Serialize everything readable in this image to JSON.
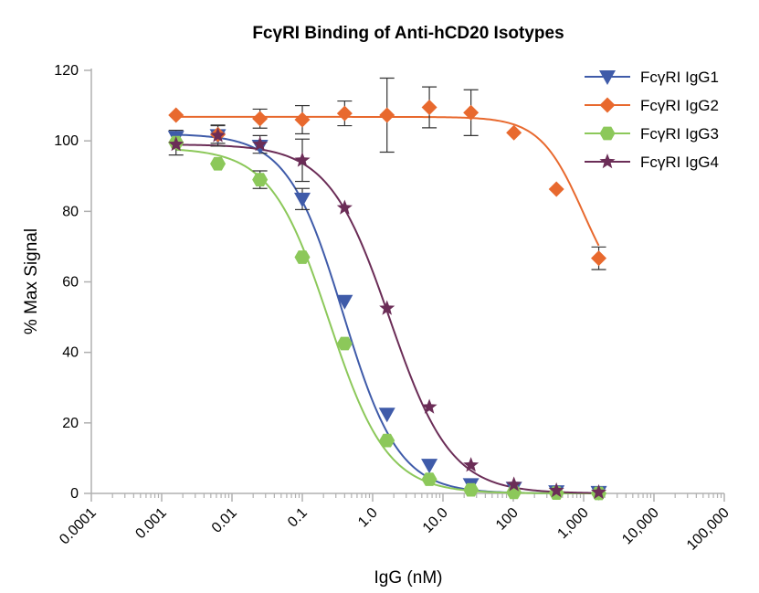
{
  "chart_data": {
    "type": "scatter",
    "title": "FcγRI Binding of Anti-hCD20 Isotypes",
    "xlabel": "IgG (nM)",
    "ylabel": "% Max Signal",
    "xscale": "log",
    "xlim": [
      0.0001,
      100000
    ],
    "ylim": [
      0,
      120
    ],
    "xticks": [
      0.0001,
      0.001,
      0.01,
      0.1,
      1,
      10,
      100,
      1000,
      10000,
      100000
    ],
    "xtick_labels": [
      "0.0001",
      "0.001",
      "0.01",
      "0.1",
      "1.0",
      "10.0",
      "100",
      "1,000",
      "10,000",
      "100,000"
    ],
    "yticks": [
      0,
      20,
      40,
      60,
      80,
      100,
      120
    ],
    "ytick_labels": [
      "0",
      "20",
      "40",
      "60",
      "80",
      "100",
      "120"
    ],
    "grid": false,
    "legend_position": "top-right",
    "fitted_curves": "4-parameter logistic",
    "series": [
      {
        "name": "FcγRI IgG1",
        "marker": "triangle-down",
        "color": "#3f5ba9",
        "x": [
          0.0016,
          0.0063,
          0.025,
          0.1,
          0.4,
          1.6,
          6.4,
          25,
          102,
          410,
          1640
        ],
        "y": [
          101,
          101.5,
          98.5,
          83.5,
          54.5,
          22.5,
          8,
          2.5,
          1.5,
          0.5,
          0.3
        ],
        "error": [
          null,
          3,
          null,
          3,
          null,
          null,
          null,
          null,
          null,
          null,
          null
        ],
        "fit": {
          "top": 102,
          "bottom": 0,
          "ec50": 0.38,
          "hill": 1.1
        }
      },
      {
        "name": "FcγRI IgG2",
        "marker": "diamond",
        "color": "#e8692e",
        "x": [
          0.0016,
          0.0063,
          0.025,
          0.1,
          0.4,
          1.6,
          6.4,
          25,
          102,
          410,
          1640
        ],
        "y": [
          107.3,
          101.8,
          106.3,
          106,
          107.8,
          107.3,
          109.5,
          108,
          102.3,
          86.3,
          66.7
        ],
        "error": [
          null,
          2.5,
          2.7,
          4,
          3.5,
          10.5,
          5.8,
          6.5,
          null,
          null,
          3.2
        ],
        "fit": {
          "top": 106.8,
          "bottom": 52,
          "ec50": 1000,
          "hill": 1.4
        }
      },
      {
        "name": "FcγRI IgG3",
        "marker": "hexagon",
        "color": "#8cc85a",
        "x": [
          0.0016,
          0.0063,
          0.025,
          0.1,
          0.4,
          1.6,
          6.4,
          25,
          102,
          410,
          1640
        ],
        "y": [
          99.5,
          93.5,
          89,
          67,
          42.5,
          15,
          4,
          1,
          0.3,
          0.1,
          0
        ],
        "error": [
          3.5,
          null,
          2.5,
          null,
          null,
          null,
          null,
          null,
          null,
          null,
          null
        ],
        "fit": {
          "top": 98,
          "bottom": 0,
          "ec50": 0.24,
          "hill": 1.05
        }
      },
      {
        "name": "FcγRI IgG4",
        "marker": "star",
        "color": "#6b2d57",
        "x": [
          0.0016,
          0.0063,
          0.025,
          0.1,
          0.4,
          1.6,
          6.4,
          25,
          102,
          410,
          1640
        ],
        "y": [
          99,
          101.5,
          99,
          94.5,
          81,
          52.5,
          24.5,
          8,
          2.5,
          0.8,
          0.3
        ],
        "error": [
          null,
          null,
          2.5,
          6,
          null,
          null,
          null,
          null,
          null,
          null,
          null
        ],
        "fit": {
          "top": 99,
          "bottom": 0,
          "ec50": 1.75,
          "hill": 1.0
        }
      }
    ]
  }
}
